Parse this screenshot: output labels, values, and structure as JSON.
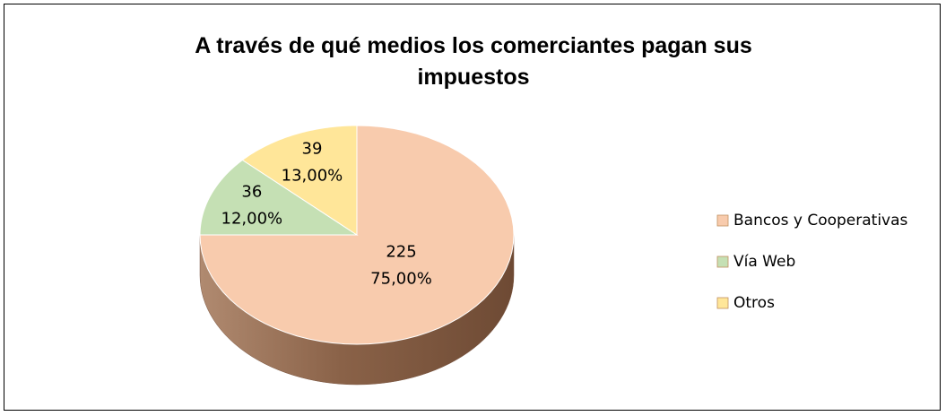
{
  "chart_data": {
    "type": "pie3d",
    "title": "A través de qué medios los comerciantes pagan sus impuestos",
    "categories": [
      "Bancos y Cooperativas",
      "Vía Web",
      "Otros"
    ],
    "values": [
      225,
      36,
      39
    ],
    "percentages": [
      75,
      12,
      13
    ],
    "percentage_labels": [
      "75,00%",
      "12,00%",
      "13,00%"
    ],
    "colors": [
      "#f8cbad",
      "#c5e0b4",
      "#ffe699"
    ],
    "legend": "right"
  }
}
